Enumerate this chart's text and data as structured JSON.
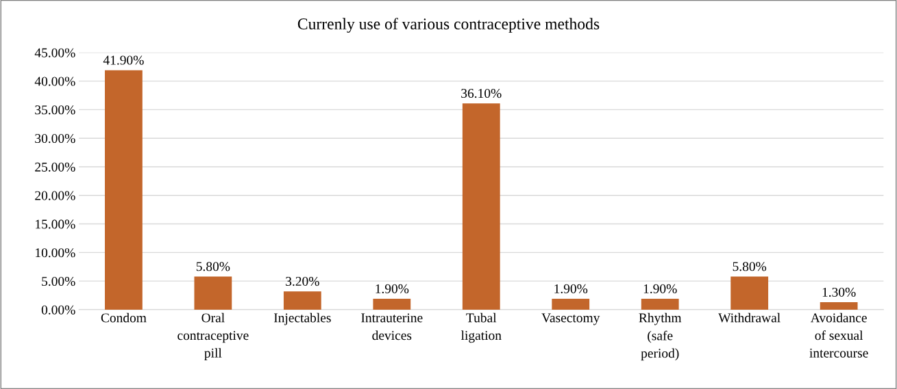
{
  "chart_data": {
    "type": "bar",
    "title": "Currenly use of various contraceptive methods",
    "categories": [
      "Condom",
      "Oral\ncontraceptive\npill",
      "Injectables",
      "Intrauterine\ndevices",
      "Tubal\nligation",
      "Vasectomy",
      "Rhythm\n(safe\nperiod)",
      "Withdrawal",
      "Avoidance\nof sexual\nintercourse"
    ],
    "values": [
      41.9,
      5.8,
      3.2,
      1.9,
      36.1,
      1.9,
      1.9,
      5.8,
      1.3
    ],
    "value_labels": [
      "41.90%",
      "5.80%",
      "3.20%",
      "1.90%",
      "36.10%",
      "1.90%",
      "1.90%",
      "5.80%",
      "1.30%"
    ],
    "color": "#c3662b",
    "ylim": [
      0,
      45
    ],
    "yticks": [
      {
        "value": 0,
        "label": "0.00%"
      },
      {
        "value": 5,
        "label": "5.00%"
      },
      {
        "value": 10,
        "label": "10.00%"
      },
      {
        "value": 15,
        "label": "15.00%"
      },
      {
        "value": 20,
        "label": "20.00%"
      },
      {
        "value": 25,
        "label": "25.00%"
      },
      {
        "value": 30,
        "label": "30.00%"
      },
      {
        "value": 35,
        "label": "35.00%"
      },
      {
        "value": 40,
        "label": "40.00%"
      },
      {
        "value": 45,
        "label": "45.00%"
      }
    ],
    "grid": "y",
    "legend": false
  }
}
